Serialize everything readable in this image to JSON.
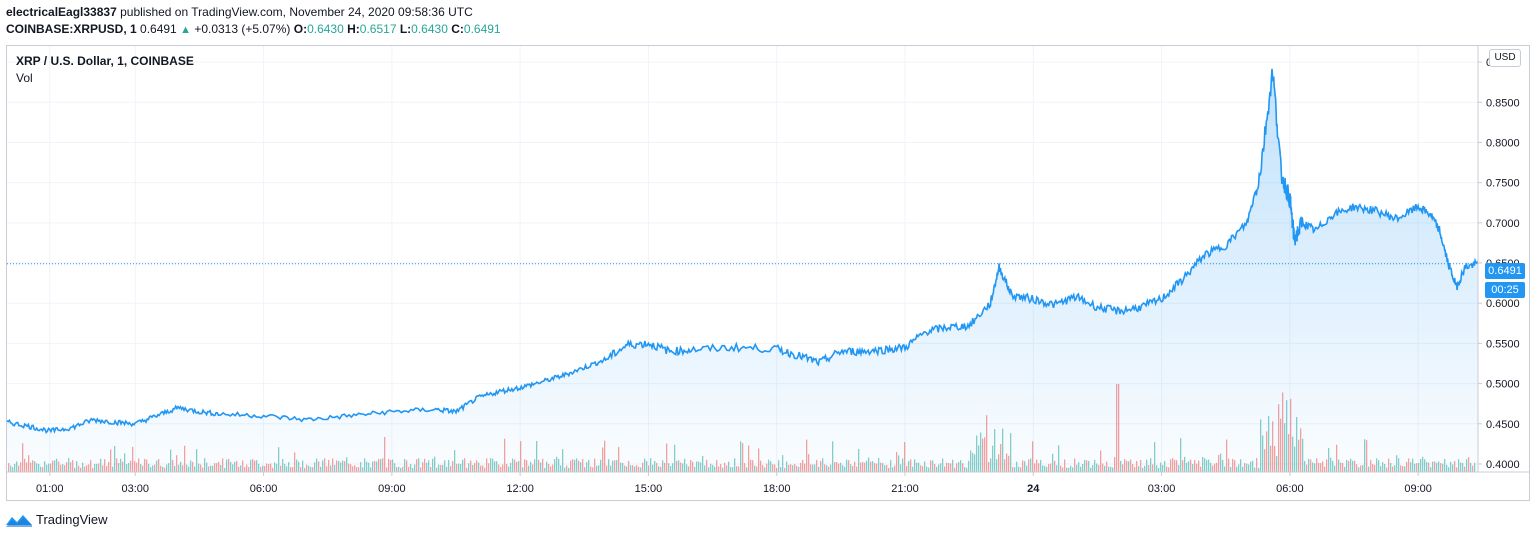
{
  "header": {
    "publisher": "electricalEagl33837",
    "published_text": "published on TradingView.com, November 24, 2020 09:58:36 UTC",
    "symbol": "COINBASE:XRPUSD, 1",
    "last": "0.6491",
    "change": "+0.0313 (+5.07%)",
    "o_label": "O:",
    "o_value": "0.6430",
    "h_label": "H:",
    "h_value": "0.6517",
    "l_label": "L:",
    "l_value": "0.6430",
    "c_label": "C:",
    "c_value": "0.6491"
  },
  "legend": {
    "title": "XRP / U.S. Dollar, 1, COINBASE",
    "vol_label": "Vol"
  },
  "currency_label": "USD",
  "current_price_label": "0.6491",
  "countdown_label": "00:25",
  "brand": "TradingView",
  "colors": {
    "line": "#2196f3",
    "area": "#2196f3",
    "vol_up": "#26a69a",
    "vol_down": "#ef5350",
    "grid": "#f0f3fa"
  },
  "chart_data": {
    "type": "area",
    "title": "XRP / U.S. Dollar, 1, COINBASE",
    "xlabel": "",
    "ylabel": "",
    "ylim": [
      0.39,
      0.92
    ],
    "y_ticks": [
      "0.9000",
      "0.8500",
      "0.8000",
      "0.7500",
      "0.7000",
      "0.6500",
      "0.6000",
      "0.5500",
      "0.5000",
      "0.4500",
      "0.4000"
    ],
    "y_tick_values": [
      0.9,
      0.85,
      0.8,
      0.75,
      0.7,
      0.65,
      0.6,
      0.55,
      0.5,
      0.45,
      0.4
    ],
    "x_ticks": [
      "01:00",
      "03:00",
      "06:00",
      "09:00",
      "12:00",
      "15:00",
      "18:00",
      "21:00",
      "24",
      "03:00",
      "06:00",
      "09:00"
    ],
    "x_tick_hours": [
      1,
      3,
      6,
      9,
      12,
      15,
      18,
      21,
      24,
      27,
      30,
      33
    ],
    "x_range_hours": [
      0,
      34.4
    ],
    "grid": true,
    "series": [
      {
        "x_hours": [
          0,
          0.5,
          1,
          1.5,
          2,
          2.5,
          3,
          3.5,
          4,
          4.5,
          5,
          6,
          7,
          8,
          9,
          10,
          10.5,
          11,
          11.5,
          12,
          12.5,
          13,
          13.5,
          14,
          14.5,
          15,
          15.5,
          16,
          17,
          18,
          18.5,
          19,
          19.5,
          20,
          20.5,
          21,
          21.5,
          22,
          22.5,
          23,
          23.2,
          23.5,
          24,
          24.5,
          25,
          25.5,
          26,
          26.5,
          27,
          27.5,
          28,
          28.5,
          29,
          29.3,
          29.6,
          29.8,
          30,
          30.1,
          30.3,
          30.6,
          31,
          31.5,
          32,
          32.5,
          33,
          33.3,
          33.5,
          33.7,
          33.9,
          34.1,
          34.4
        ],
        "values": [
          0.452,
          0.447,
          0.441,
          0.445,
          0.455,
          0.452,
          0.45,
          0.46,
          0.47,
          0.465,
          0.462,
          0.46,
          0.455,
          0.46,
          0.465,
          0.468,
          0.465,
          0.482,
          0.49,
          0.495,
          0.502,
          0.51,
          0.52,
          0.53,
          0.548,
          0.55,
          0.54,
          0.542,
          0.545,
          0.543,
          0.535,
          0.526,
          0.54,
          0.54,
          0.542,
          0.545,
          0.565,
          0.57,
          0.572,
          0.6,
          0.645,
          0.61,
          0.605,
          0.598,
          0.608,
          0.595,
          0.59,
          0.595,
          0.605,
          0.63,
          0.66,
          0.672,
          0.7,
          0.76,
          0.89,
          0.76,
          0.73,
          0.68,
          0.7,
          0.69,
          0.71,
          0.72,
          0.715,
          0.705,
          0.72,
          0.71,
          0.69,
          0.65,
          0.62,
          0.645,
          0.6491
        ]
      }
    ],
    "current_value": 0.6491
  }
}
